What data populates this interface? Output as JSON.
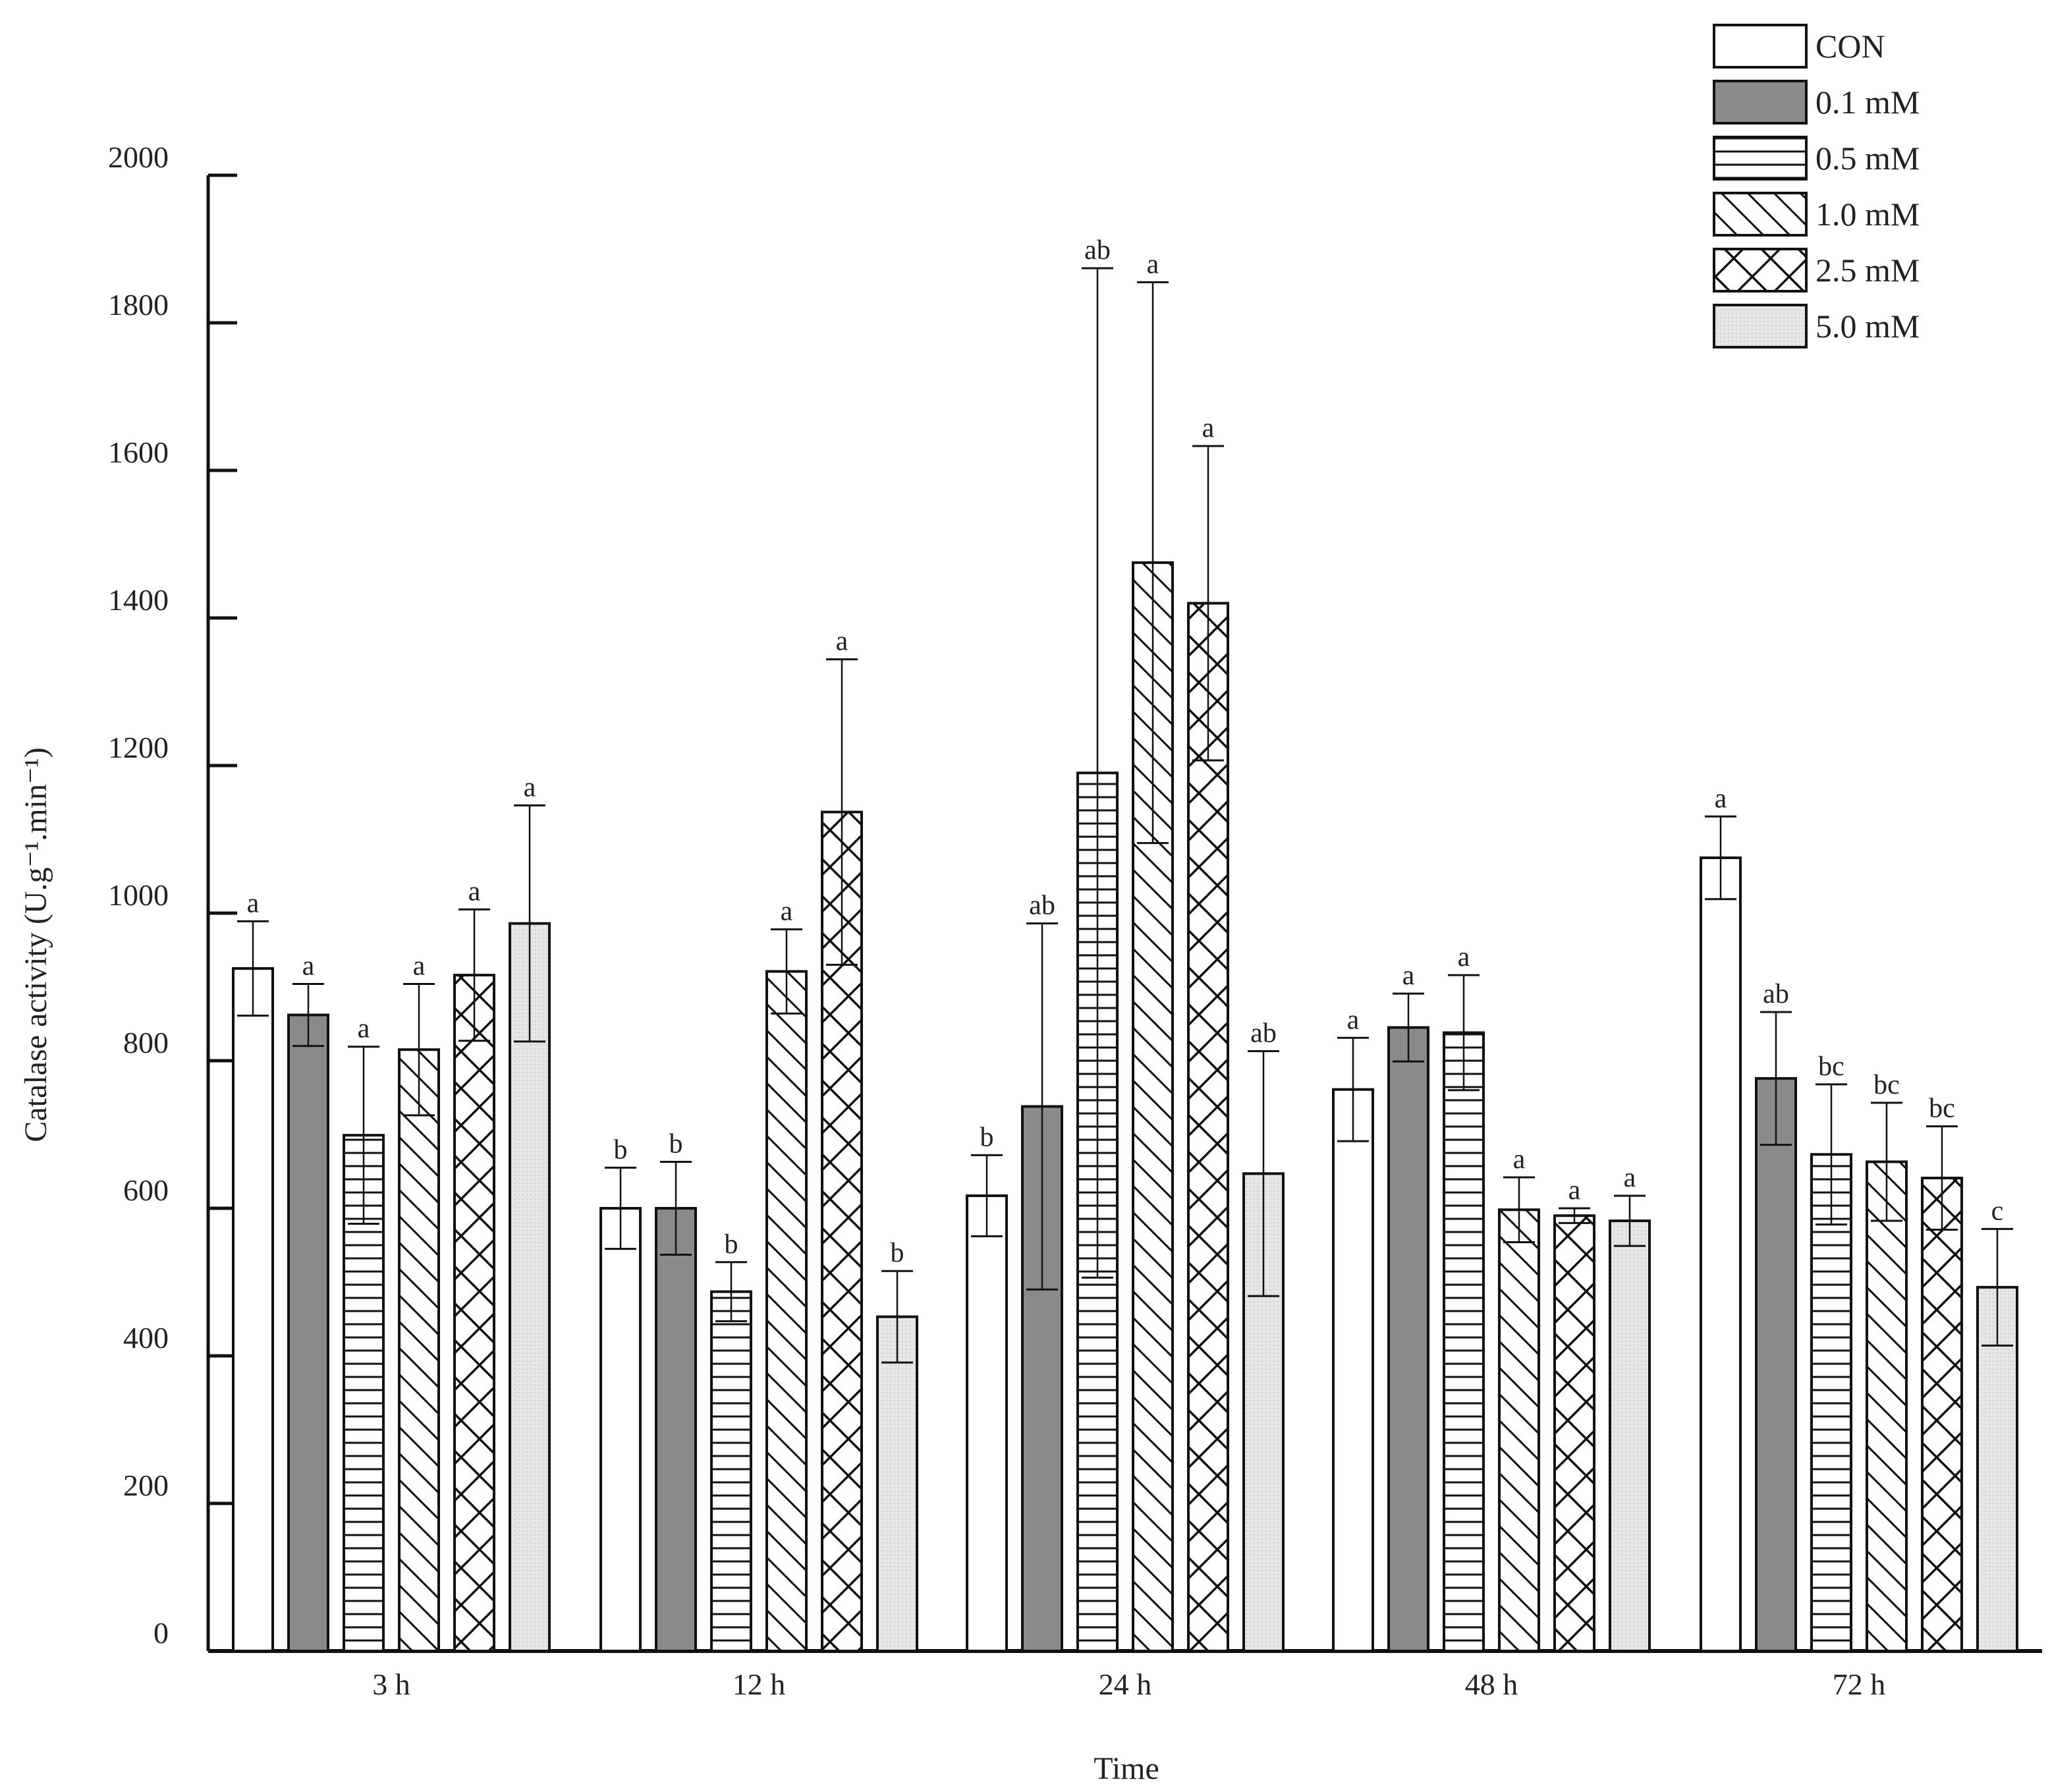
{
  "chart_data": {
    "type": "bar",
    "title": "",
    "xlabel": "Time",
    "ylabel": "Catalase activity  (U.g⁻¹.min⁻¹)",
    "ylim": [
      0,
      2000
    ],
    "yticks": [
      0,
      200,
      400,
      600,
      800,
      1000,
      1200,
      1400,
      1600,
      1800,
      2000
    ],
    "categories": [
      "3 h",
      "12 h",
      "24 h",
      "48 h",
      "72 h"
    ],
    "legend_position": "top-right",
    "series": [
      {
        "name": "CON",
        "pattern": "white",
        "values": [
          925,
          600,
          617,
          761,
          1075
        ],
        "errors": [
          64,
          55,
          55,
          70,
          56
        ],
        "letters": [
          "a",
          "b",
          "b",
          "a",
          "a"
        ]
      },
      {
        "name": "0.1 mM",
        "pattern": "gray",
        "values": [
          862,
          600,
          738,
          845,
          776
        ],
        "errors": [
          42,
          63,
          248,
          46,
          90
        ],
        "letters": [
          "a",
          "b",
          "ab",
          "a",
          "ab"
        ]
      },
      {
        "name": "0.5 mM",
        "pattern": "hlines",
        "values": [
          699,
          487,
          1190,
          838,
          673
        ],
        "errors": [
          120,
          40,
          684,
          78,
          95
        ],
        "letters": [
          "a",
          "b",
          "ab",
          "a",
          "bc"
        ]
      },
      {
        "name": "1.0 mM",
        "pattern": "diag",
        "values": [
          815,
          921,
          1475,
          598,
          663
        ],
        "errors": [
          89,
          57,
          380,
          44,
          80
        ],
        "letters": [
          "a",
          "a",
          "a",
          "a",
          "bc"
        ]
      },
      {
        "name": "2.5 mM",
        "pattern": "cross",
        "values": [
          916,
          1137,
          1420,
          590,
          641
        ],
        "errors": [
          89,
          207,
          213,
          10,
          70
        ],
        "letters": [
          "a",
          "a",
          "a",
          "a",
          "bc"
        ]
      },
      {
        "name": "5.0 mM",
        "pattern": "dots",
        "values": [
          986,
          453,
          647,
          583,
          493
        ],
        "errors": [
          160,
          62,
          166,
          34,
          79
        ],
        "letters": [
          "a",
          "b",
          "ab",
          "a",
          "c"
        ]
      }
    ]
  },
  "colors": {
    "axis": "#111111",
    "bar_outline": "#111111",
    "gray_fill": "#8a8a8a",
    "dots_fill": "#e4e4e4",
    "pattern_line": "#111111"
  }
}
